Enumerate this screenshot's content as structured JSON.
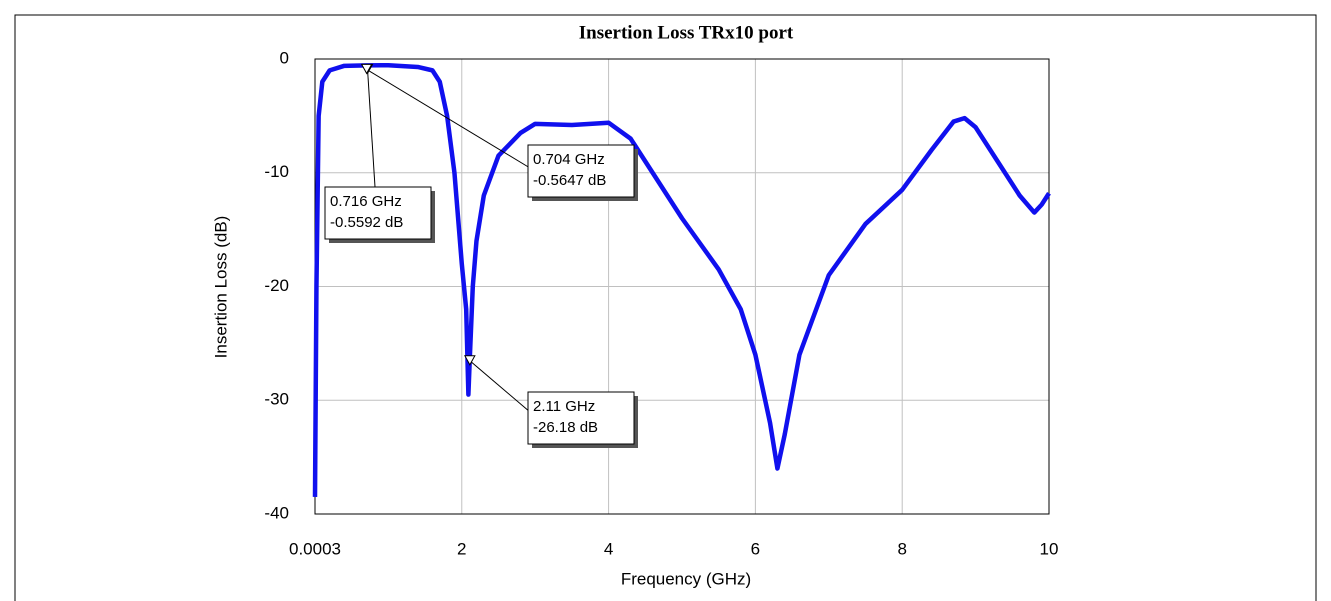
{
  "chart_data": {
    "type": "line",
    "title": "Insertion Loss TRx10 port",
    "x_label": "Frequency (GHz)",
    "y_label": "Insertion Loss (dB)",
    "xlim": [
      0.0003,
      10
    ],
    "ylim": [
      -40,
      0
    ],
    "xticks": [
      0.0003,
      2,
      4,
      6,
      8,
      10
    ],
    "yticks": [
      0,
      -10,
      -20,
      -30,
      -40
    ],
    "grid": true,
    "series": [
      {
        "name": "TRx10",
        "color": "#1010ee",
        "x": [
          0.0003,
          0.02,
          0.05,
          0.1,
          0.2,
          0.4,
          0.7,
          1.0,
          1.4,
          1.6,
          1.7,
          1.8,
          1.9,
          2.0,
          2.06,
          2.09,
          2.11,
          2.15,
          2.2,
          2.3,
          2.5,
          2.8,
          3.0,
          3.5,
          4.0,
          4.3,
          4.6,
          5.0,
          5.5,
          5.8,
          6.0,
          6.2,
          6.3,
          6.4,
          6.6,
          7.0,
          7.5,
          8.0,
          8.4,
          8.7,
          8.85,
          9.0,
          9.3,
          9.6,
          9.8,
          9.9,
          10
        ],
        "values": [
          -38.5,
          -20,
          -5,
          -2,
          -1,
          -0.6,
          -0.56,
          -0.55,
          -0.7,
          -1.0,
          -2,
          -5,
          -10,
          -18,
          -22,
          -29.5,
          -26.18,
          -20,
          -16,
          -12,
          -8.5,
          -6.5,
          -5.7,
          -5.8,
          -5.6,
          -7,
          -10,
          -14,
          -18.5,
          -22,
          -26,
          -32,
          -36,
          -33,
          -26,
          -19,
          -14.5,
          -11.5,
          -8,
          -5.5,
          -5.2,
          -6,
          -9,
          -12,
          -13.5,
          -12.8,
          -11.8
        ]
      }
    ],
    "markers": [
      {
        "x": 0.716,
        "y": -0.5592,
        "labels": [
          "0.716 GHz",
          "-0.5592 dB"
        ]
      },
      {
        "x": 0.704,
        "y": -0.5647,
        "labels": [
          "0.704 GHz",
          "-0.5647 dB"
        ]
      },
      {
        "x": 2.11,
        "y": -26.18,
        "labels": [
          "2.11 GHz",
          "-26.18 dB"
        ]
      }
    ]
  }
}
